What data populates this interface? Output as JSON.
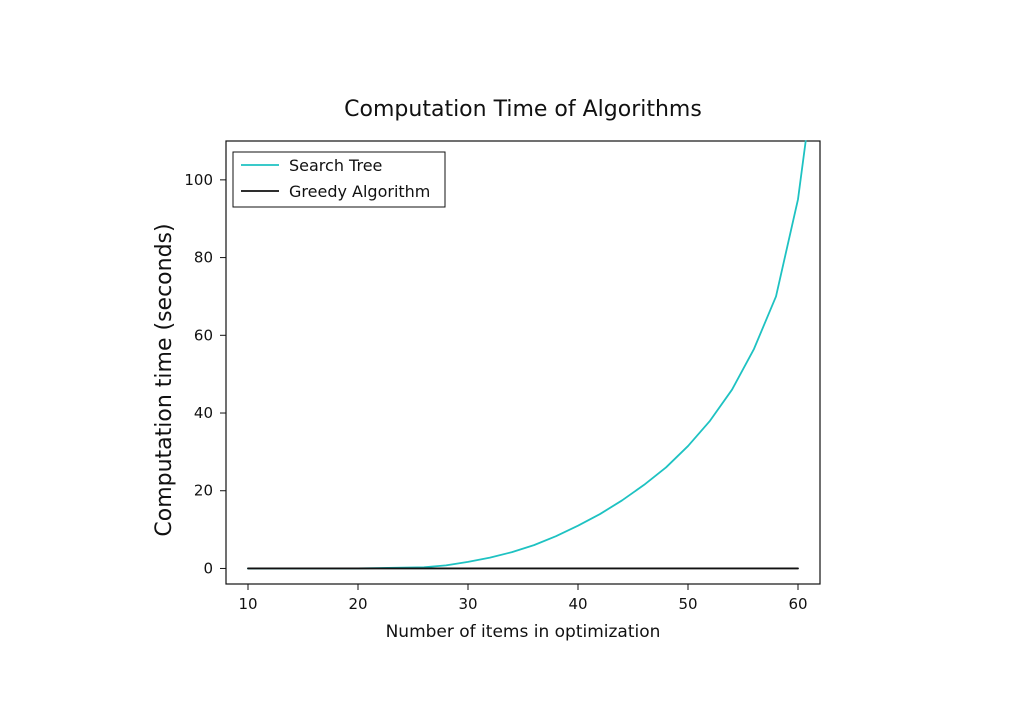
{
  "chart_data": {
    "type": "line",
    "title": "Computation Time of Algorithms",
    "xlabel": "Number of items in optimization",
    "ylabel": "Computation time (seconds)",
    "xlim": [
      8,
      62
    ],
    "ylim": [
      -4,
      110
    ],
    "xticks": [
      10,
      20,
      30,
      40,
      50,
      60
    ],
    "yticks": [
      0,
      20,
      40,
      60,
      80,
      100
    ],
    "grid": false,
    "legend_position": "top-left",
    "series": [
      {
        "name": "Search Tree",
        "color": "#1ec2c2",
        "x": [
          10,
          20,
          26,
          28,
          30,
          32,
          34,
          36,
          38,
          40,
          42,
          44,
          46,
          48,
          50,
          52,
          54,
          56,
          58,
          60,
          60.7
        ],
        "y": [
          0,
          0,
          0.3,
          0.8,
          1.7,
          2.8,
          4.2,
          6.0,
          8.3,
          11.0,
          14.0,
          17.5,
          21.5,
          26.0,
          31.5,
          38.0,
          46.0,
          56.5,
          70.0,
          95.0,
          110.0
        ]
      },
      {
        "name": "Greedy Algorithm",
        "color": "#111111",
        "x": [
          10,
          60
        ],
        "y": [
          0,
          0
        ]
      }
    ]
  }
}
